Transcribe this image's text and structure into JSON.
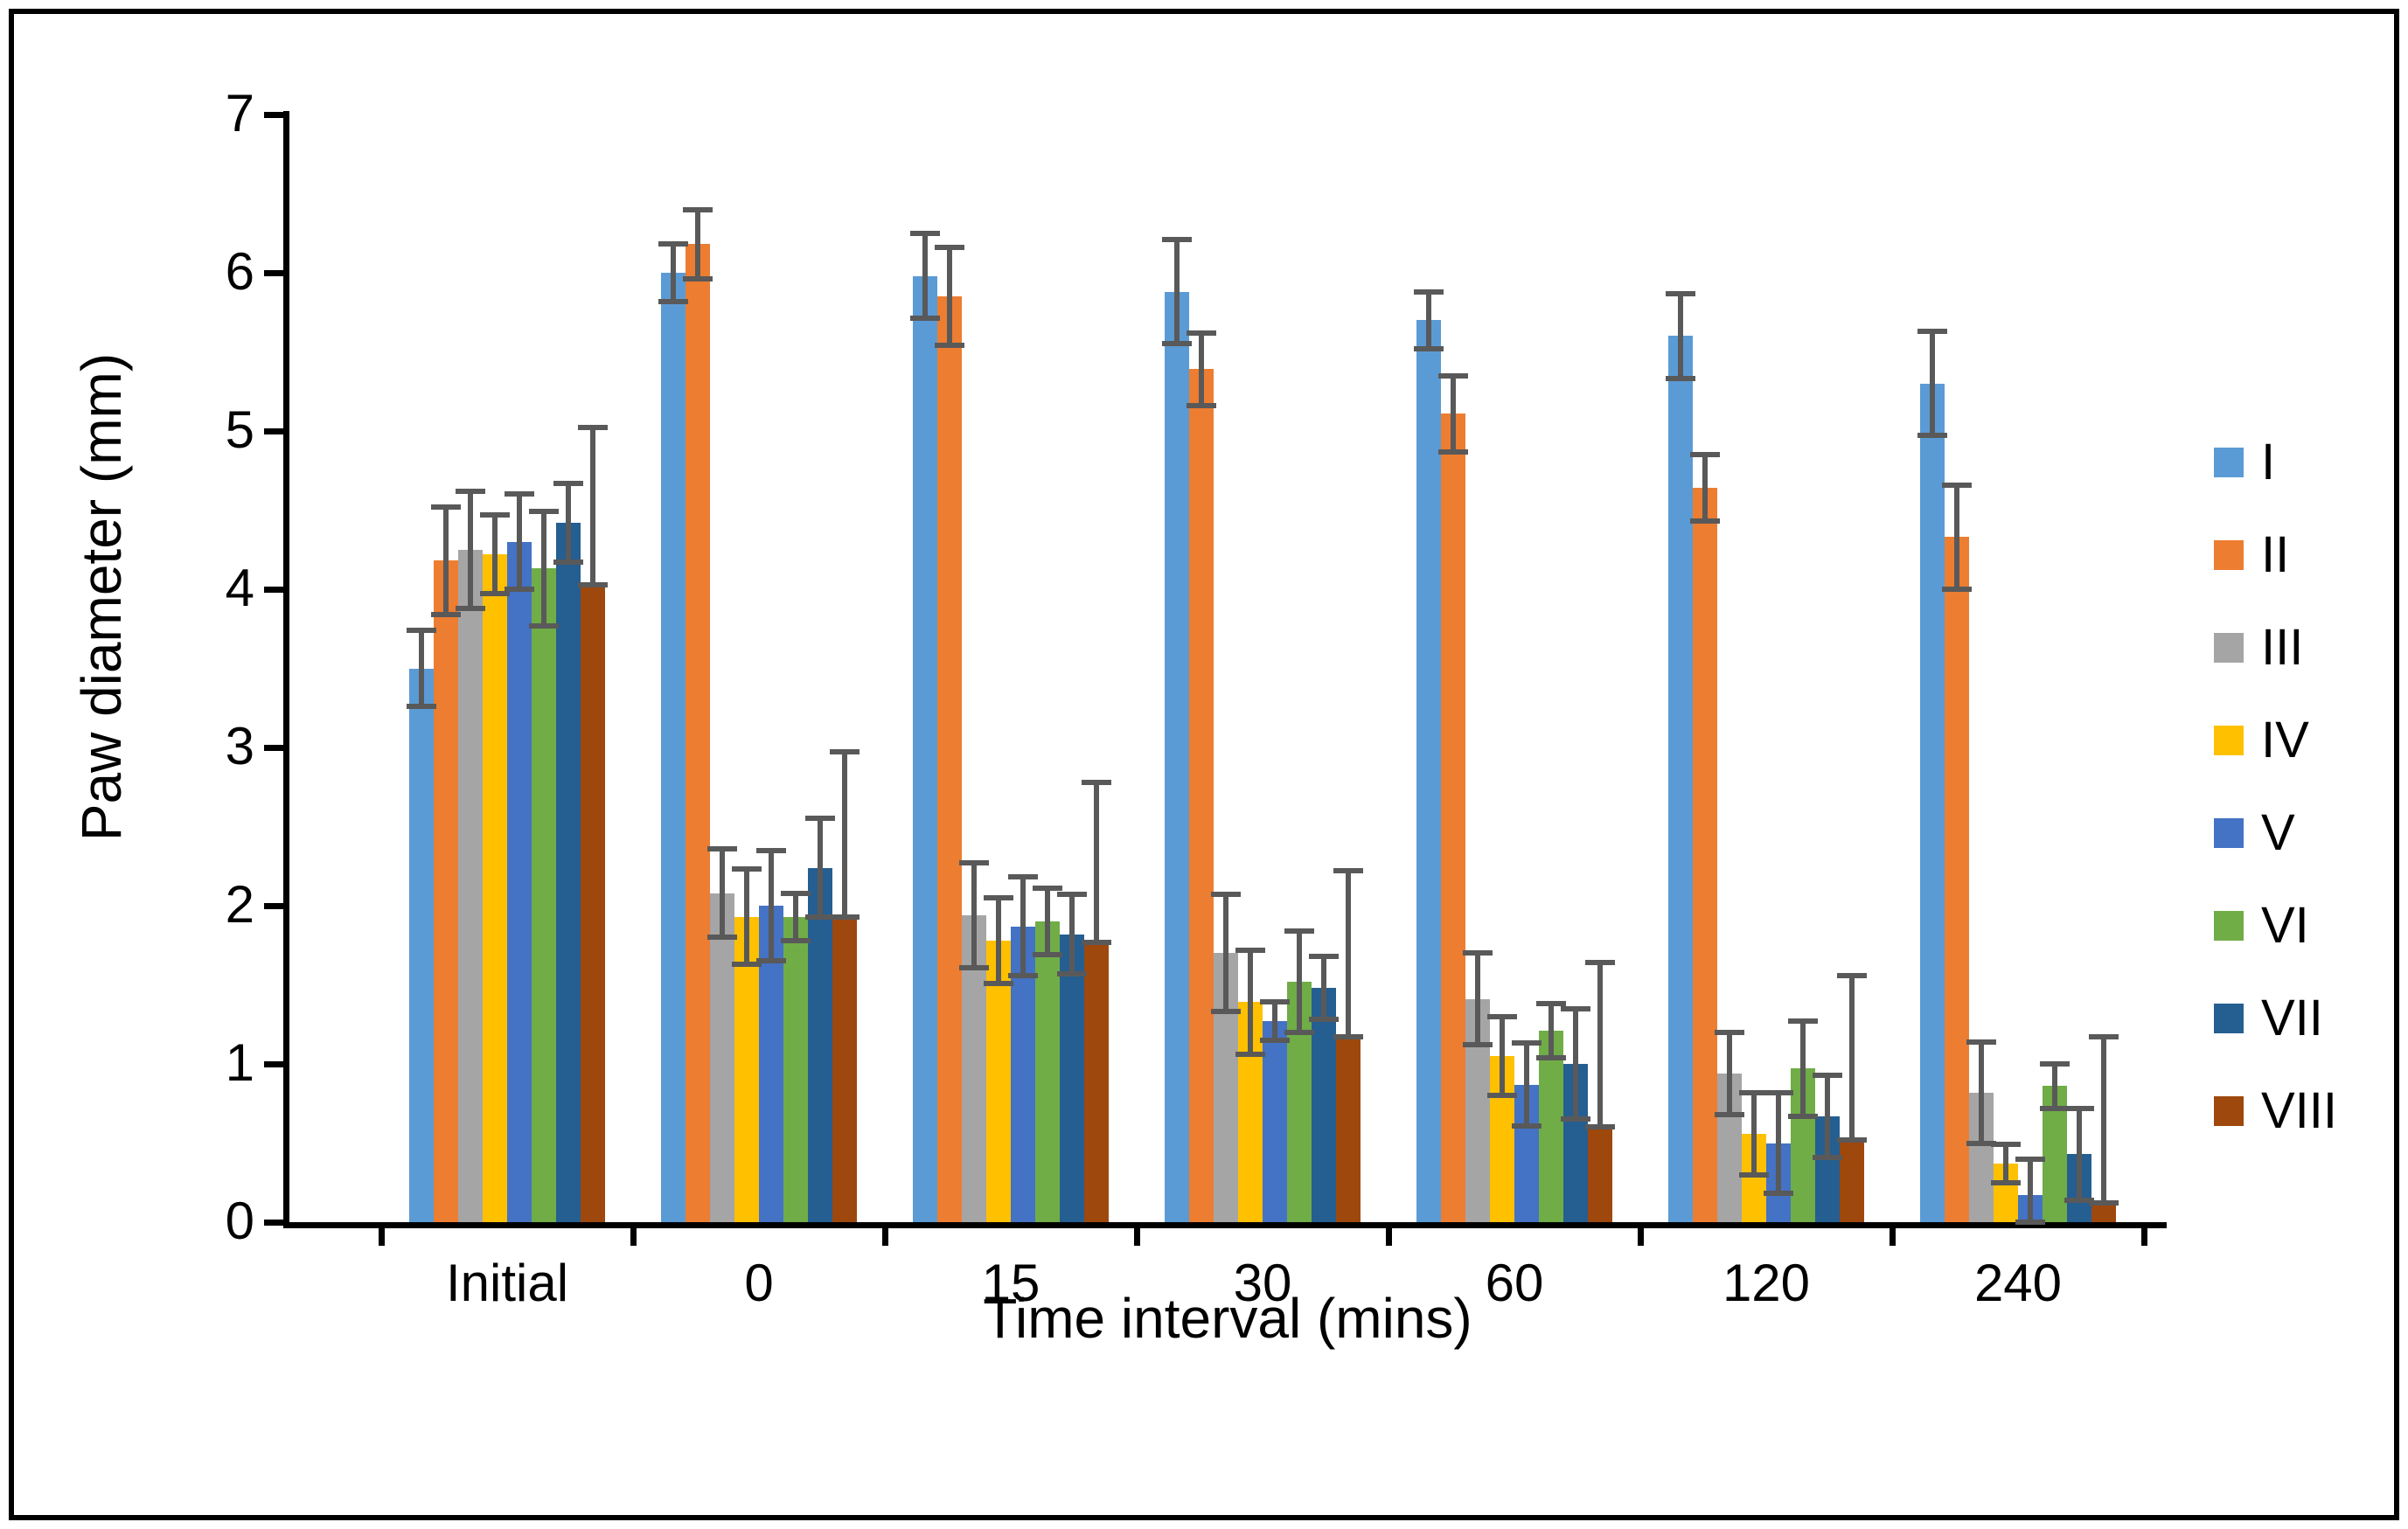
{
  "figure": {
    "background": "#ffffff",
    "border_color": "#000000",
    "error_bar_color": "#595959",
    "axis_color": "#000000"
  },
  "chart_data": {
    "type": "bar",
    "title": "",
    "xlabel": "Time interval (mins)",
    "ylabel": "Paw diameter (mm)",
    "ylim": [
      0,
      7
    ],
    "y_ticks": [
      0,
      1,
      2,
      3,
      4,
      5,
      6,
      7
    ],
    "grid": false,
    "legend_position": "right",
    "error_bars": true,
    "categories": [
      "Initial",
      "0",
      "15",
      "30",
      "60",
      "120",
      "240"
    ],
    "series": [
      {
        "name": "I",
        "color": "#5B9BD5",
        "values": [
          3.5,
          6.0,
          5.98,
          5.88,
          5.7,
          5.6,
          5.3
        ],
        "err_up": [
          0.24,
          0.18,
          0.27,
          0.33,
          0.18,
          0.27,
          0.33
        ],
        "err_down": [
          0.24,
          0.18,
          0.27,
          0.33,
          0.18,
          0.27,
          0.33
        ]
      },
      {
        "name": "II",
        "color": "#ED7D31",
        "values": [
          4.18,
          6.18,
          5.85,
          5.39,
          5.11,
          4.64,
          4.33
        ],
        "err_up": [
          0.34,
          0.22,
          0.31,
          0.23,
          0.24,
          0.21,
          0.33
        ],
        "err_down": [
          0.34,
          0.22,
          0.31,
          0.23,
          0.24,
          0.21,
          0.33
        ]
      },
      {
        "name": "III",
        "color": "#A5A5A5",
        "values": [
          4.25,
          2.08,
          1.94,
          1.7,
          1.41,
          0.94,
          0.82
        ],
        "err_up": [
          0.37,
          0.28,
          0.33,
          0.37,
          0.29,
          0.26,
          0.32
        ],
        "err_down": [
          0.37,
          0.28,
          0.33,
          0.37,
          0.29,
          0.26,
          0.32
        ]
      },
      {
        "name": "IV",
        "color": "#FFC000",
        "values": [
          4.22,
          1.93,
          1.78,
          1.39,
          1.05,
          0.56,
          0.37
        ],
        "err_up": [
          0.25,
          0.3,
          0.27,
          0.33,
          0.25,
          0.26,
          0.12
        ],
        "err_down": [
          0.25,
          0.3,
          0.27,
          0.33,
          0.25,
          0.26,
          0.12
        ]
      },
      {
        "name": "V",
        "color": "#4472C4",
        "values": [
          4.3,
          2.0,
          1.87,
          1.27,
          0.87,
          0.5,
          0.17
        ],
        "err_up": [
          0.3,
          0.35,
          0.31,
          0.12,
          0.26,
          0.32,
          0.23
        ],
        "err_down": [
          0.3,
          0.35,
          0.31,
          0.12,
          0.26,
          0.32,
          0.17
        ]
      },
      {
        "name": "VI",
        "color": "#70AD47",
        "values": [
          4.13,
          1.93,
          1.9,
          1.52,
          1.21,
          0.97,
          0.86
        ],
        "err_up": [
          0.36,
          0.15,
          0.21,
          0.32,
          0.17,
          0.3,
          0.14
        ],
        "err_down": [
          0.36,
          0.15,
          0.21,
          0.32,
          0.17,
          0.3,
          0.14
        ]
      },
      {
        "name": "VII",
        "color": "#255E91",
        "values": [
          4.42,
          2.24,
          1.82,
          1.48,
          1.0,
          0.67,
          0.43
        ],
        "err_up": [
          0.25,
          0.31,
          0.25,
          0.2,
          0.35,
          0.26,
          0.29
        ],
        "err_down": [
          0.25,
          0.31,
          0.25,
          0.2,
          0.35,
          0.26,
          0.29
        ]
      },
      {
        "name": "VIII",
        "color": "#9E480E",
        "values": [
          4.03,
          1.93,
          1.77,
          1.17,
          0.6,
          0.52,
          0.12
        ],
        "err_up": [
          0.99,
          1.04,
          1.01,
          1.05,
          1.04,
          1.04,
          1.05
        ],
        "err_down": [
          0.0,
          0.0,
          0.0,
          0.0,
          0.0,
          0.0,
          0.0
        ]
      }
    ]
  }
}
